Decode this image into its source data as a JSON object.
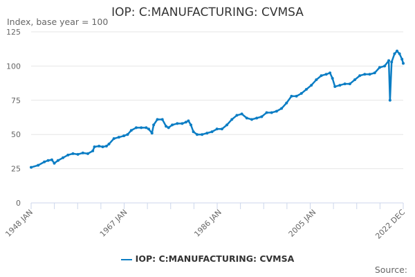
{
  "chart_data": {
    "type": "line",
    "title": "IOP: C:MANUFACTURING: CVMSA",
    "ylabel": "Index, base year = 100",
    "ylim": [
      0,
      125
    ],
    "yticks": [
      0,
      25,
      50,
      75,
      100,
      125
    ],
    "xlim": [
      "1948-01",
      "2022-12"
    ],
    "xtick_labels": [
      "1948 JAN",
      "1967 JAN",
      "1986 JAN",
      "2005 JAN",
      "2022 DEC"
    ],
    "xtick_dates": [
      "1948-01",
      "1967-01",
      "1986-01",
      "2005-01",
      "2022-12"
    ],
    "grid": "horizontal",
    "legend_placement": "bottom",
    "color": "#0b7dc4",
    "series": [
      {
        "name": "IOP: C:MANUFACTURING: CVMSA",
        "points": [
          [
            "1948-01",
            26
          ],
          [
            "1949-06",
            27.5
          ],
          [
            "1950-09",
            30
          ],
          [
            "1951-06",
            31
          ],
          [
            "1952-03",
            31.5
          ],
          [
            "1952-09",
            29
          ],
          [
            "1953-06",
            31
          ],
          [
            "1954-06",
            33
          ],
          [
            "1955-06",
            35
          ],
          [
            "1956-06",
            36
          ],
          [
            "1957-06",
            35.5
          ],
          [
            "1958-06",
            36.5
          ],
          [
            "1959-06",
            36
          ],
          [
            "1960-06",
            38
          ],
          [
            "1960-10",
            41
          ],
          [
            "1961-09",
            41.5
          ],
          [
            "1962-06",
            41
          ],
          [
            "1963-03",
            41.5
          ],
          [
            "1963-09",
            43
          ],
          [
            "1964-09",
            47
          ],
          [
            "1965-09",
            48
          ],
          [
            "1966-09",
            49
          ],
          [
            "1967-06",
            50
          ],
          [
            "1968-03",
            53
          ],
          [
            "1969-03",
            55
          ],
          [
            "1970-03",
            55
          ],
          [
            "1971-03",
            55
          ],
          [
            "1971-09",
            54
          ],
          [
            "1972-05",
            51
          ],
          [
            "1972-09",
            57
          ],
          [
            "1973-06",
            61
          ],
          [
            "1974-06",
            61
          ],
          [
            "1975-03",
            56
          ],
          [
            "1975-09",
            55
          ],
          [
            "1976-06",
            57
          ],
          [
            "1977-06",
            58
          ],
          [
            "1978-06",
            58
          ],
          [
            "1979-03",
            59
          ],
          [
            "1979-09",
            60
          ],
          [
            "1980-03",
            57
          ],
          [
            "1980-09",
            52
          ],
          [
            "1981-06",
            50
          ],
          [
            "1982-06",
            50
          ],
          [
            "1983-06",
            51
          ],
          [
            "1984-06",
            52
          ],
          [
            "1985-06",
            54
          ],
          [
            "1986-06",
            54
          ],
          [
            "1987-06",
            57
          ],
          [
            "1988-06",
            61
          ],
          [
            "1989-06",
            64
          ],
          [
            "1990-06",
            65
          ],
          [
            "1991-06",
            62
          ],
          [
            "1992-06",
            61
          ],
          [
            "1993-06",
            62
          ],
          [
            "1994-06",
            63
          ],
          [
            "1995-06",
            66
          ],
          [
            "1996-06",
            66
          ],
          [
            "1997-06",
            67
          ],
          [
            "1998-06",
            69
          ],
          [
            "1999-06",
            73
          ],
          [
            "2000-06",
            78
          ],
          [
            "2001-06",
            78
          ],
          [
            "2002-06",
            80
          ],
          [
            "2003-06",
            83
          ],
          [
            "2004-06",
            86
          ],
          [
            "2005-06",
            90
          ],
          [
            "2006-06",
            93
          ],
          [
            "2007-06",
            94
          ],
          [
            "2008-03",
            95
          ],
          [
            "2008-09",
            91
          ],
          [
            "2009-03",
            85
          ],
          [
            "2010-03",
            86
          ],
          [
            "2011-03",
            87
          ],
          [
            "2012-03",
            87
          ],
          [
            "2013-03",
            90
          ],
          [
            "2014-03",
            93
          ],
          [
            "2015-03",
            94
          ],
          [
            "2016-03",
            94
          ],
          [
            "2017-03",
            95
          ],
          [
            "2018-03",
            99
          ],
          [
            "2019-03",
            100
          ],
          [
            "2020-01",
            104
          ],
          [
            "2020-04",
            75
          ],
          [
            "2020-08",
            103
          ],
          [
            "2021-03",
            109
          ],
          [
            "2021-09",
            111
          ],
          [
            "2022-03",
            109
          ],
          [
            "2022-09",
            105
          ],
          [
            "2022-12",
            102
          ]
        ]
      }
    ]
  },
  "source_label": "Source:"
}
